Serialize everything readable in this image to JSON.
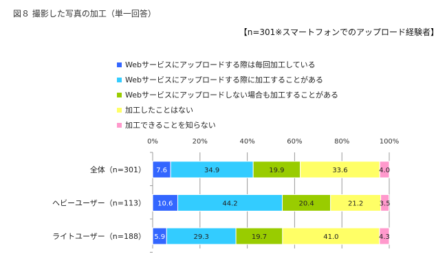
{
  "title": "図８ 撮影した写真の加工（単一回答）",
  "subtitle": "【n=301※スマートフォンでのアップロード経験者】",
  "chart_data": {
    "type": "bar",
    "orientation": "horizontal-stacked",
    "categories": [
      "全体（n=301）",
      "ヘビーユーザー（n=113）",
      "ライトユーザー（n=188）"
    ],
    "series": [
      {
        "name": "Webサービスにアップロードする際は毎回加工している",
        "color": "#3366ff",
        "values": [
          7.6,
          10.6,
          5.9
        ]
      },
      {
        "name": "Webサービスにアップロードする際に加工することがある",
        "color": "#33ccff",
        "values": [
          34.9,
          44.2,
          29.3
        ]
      },
      {
        "name": "Webサービスにアップロードしない場合も加工することがある",
        "color": "#99cc00",
        "values": [
          19.9,
          20.4,
          19.7
        ]
      },
      {
        "name": "加工したことはない",
        "color": "#ffff66",
        "values": [
          33.6,
          21.2,
          41.0
        ]
      },
      {
        "name": "加工できることを知らない",
        "color": "#ff99cc",
        "values": [
          4.0,
          3.5,
          4.3
        ]
      }
    ],
    "xticks": [
      "0%",
      "20%",
      "40%",
      "60%",
      "80%",
      "100%"
    ],
    "xlim": [
      0,
      100
    ],
    "grid": true,
    "legend_position": "top"
  }
}
